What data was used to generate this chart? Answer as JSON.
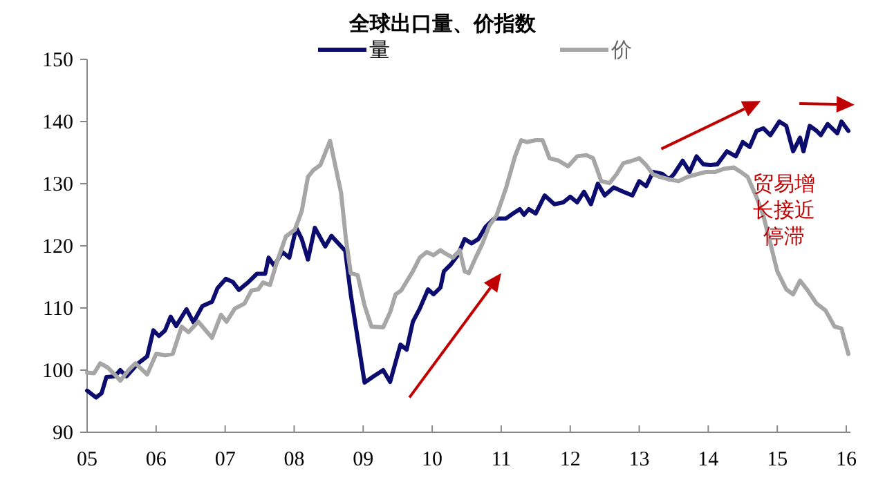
{
  "chart_data": {
    "type": "line",
    "title": "全球出口量、价指数",
    "xlim": [
      2005,
      2016.06
    ],
    "xticks": [
      {
        "value": 2005,
        "label": "05"
      },
      {
        "value": 2006,
        "label": "06"
      },
      {
        "value": 2007,
        "label": "07"
      },
      {
        "value": 2008,
        "label": "08"
      },
      {
        "value": 2009,
        "label": "09"
      },
      {
        "value": 2010,
        "label": "10"
      },
      {
        "value": 2011,
        "label": "11"
      },
      {
        "value": 2012,
        "label": "12"
      },
      {
        "value": 2013,
        "label": "13"
      },
      {
        "value": 2014,
        "label": "14"
      },
      {
        "value": 2015,
        "label": "15"
      },
      {
        "value": 2016,
        "label": "16"
      }
    ],
    "ylim": [
      90,
      150
    ],
    "yticks": [
      90,
      100,
      110,
      120,
      130,
      140,
      150
    ],
    "grid": false,
    "legend": "top",
    "marker": "none",
    "line_style": "solid",
    "series": [
      {
        "name": "量",
        "color": "#0c0c6e",
        "x": [
          2005.0,
          2005.13,
          2005.21,
          2005.28,
          2005.4,
          2005.48,
          2005.57,
          2005.74,
          2005.87,
          2005.96,
          2006.04,
          2006.13,
          2006.21,
          2006.29,
          2006.44,
          2006.54,
          2006.67,
          2006.81,
          2006.89,
          2007.01,
          2007.11,
          2007.2,
          2007.34,
          2007.46,
          2007.58,
          2007.63,
          2007.71,
          2007.83,
          2007.93,
          2008.03,
          2008.11,
          2008.2,
          2008.3,
          2008.45,
          2008.54,
          2008.74,
          2008.82,
          2009.02,
          2009.15,
          2009.29,
          2009.39,
          2009.54,
          2009.63,
          2009.72,
          2009.82,
          2009.94,
          2010.02,
          2010.12,
          2010.17,
          2010.27,
          2010.37,
          2010.47,
          2010.57,
          2010.67,
          2010.77,
          2010.9,
          2011.07,
          2011.17,
          2011.27,
          2011.33,
          2011.4,
          2011.5,
          2011.63,
          2011.77,
          2011.9,
          2012.0,
          2012.1,
          2012.2,
          2012.3,
          2012.4,
          2012.5,
          2012.63,
          2012.77,
          2012.9,
          2013.0,
          2013.1,
          2013.2,
          2013.33,
          2013.43,
          2013.5,
          2013.63,
          2013.73,
          2013.83,
          2013.93,
          2014.03,
          2014.13,
          2014.27,
          2014.4,
          2014.5,
          2014.6,
          2014.7,
          2014.8,
          2014.9,
          2015.03,
          2015.13,
          2015.23,
          2015.33,
          2015.38,
          2015.47,
          2015.57,
          2015.63,
          2015.73,
          2015.87,
          2015.93,
          2016.03
        ],
        "values": [
          96.7,
          95.6,
          96.3,
          98.9,
          99.0,
          100.0,
          99.0,
          101.1,
          102.2,
          106.4,
          105.5,
          106.4,
          108.6,
          107.1,
          109.8,
          107.7,
          110.3,
          111.0,
          113.2,
          114.7,
          114.2,
          112.9,
          114.2,
          115.5,
          115.5,
          118.1,
          116.8,
          119.0,
          118.1,
          122.9,
          121.1,
          117.8,
          122.9,
          119.9,
          121.6,
          119.2,
          112.2,
          98.0,
          99.0,
          100.0,
          98.1,
          104.1,
          103.3,
          107.8,
          109.9,
          113.0,
          112.2,
          113.3,
          115.9,
          117.0,
          118.5,
          121.1,
          120.4,
          121.1,
          123.0,
          124.4,
          124.4,
          125.2,
          125.9,
          125.0,
          125.9,
          125.2,
          128.1,
          126.7,
          127.0,
          127.9,
          127.0,
          128.7,
          126.7,
          130.0,
          128.1,
          129.4,
          128.7,
          128.1,
          130.4,
          129.6,
          131.9,
          131.6,
          130.7,
          131.5,
          133.7,
          131.9,
          134.4,
          133.1,
          133.0,
          133.1,
          135.2,
          134.4,
          136.7,
          135.9,
          138.5,
          138.9,
          137.8,
          140.0,
          139.3,
          135.2,
          137.4,
          135.2,
          139.3,
          138.5,
          137.8,
          139.6,
          138.1,
          140.0,
          138.5
        ]
      },
      {
        "name": "价",
        "color": "#a6a6a6",
        "x": [
          2005.0,
          2005.1,
          2005.19,
          2005.3,
          2005.4,
          2005.48,
          2005.6,
          2005.7,
          2005.87,
          2006.0,
          2006.14,
          2006.24,
          2006.37,
          2006.47,
          2006.61,
          2006.81,
          2006.94,
          2007.02,
          2007.14,
          2007.28,
          2007.38,
          2007.48,
          2007.55,
          2007.65,
          2007.75,
          2007.88,
          2008.01,
          2008.11,
          2008.2,
          2008.28,
          2008.38,
          2008.52,
          2008.68,
          2008.75,
          2008.82,
          2008.92,
          2009.02,
          2009.12,
          2009.29,
          2009.39,
          2009.47,
          2009.55,
          2009.72,
          2009.82,
          2009.92,
          2010.02,
          2010.12,
          2010.17,
          2010.3,
          2010.4,
          2010.47,
          2010.53,
          2010.63,
          2010.73,
          2010.83,
          2010.93,
          2011.07,
          2011.2,
          2011.29,
          2011.37,
          2011.5,
          2011.6,
          2011.7,
          2011.83,
          2011.97,
          2012.1,
          2012.23,
          2012.33,
          2012.45,
          2012.57,
          2012.67,
          2012.77,
          2012.9,
          2013.0,
          2013.1,
          2013.2,
          2013.3,
          2013.43,
          2013.57,
          2013.7,
          2013.83,
          2013.97,
          2014.1,
          2014.23,
          2014.37,
          2014.47,
          2014.57,
          2014.7,
          2014.8,
          2014.9,
          2015.0,
          2015.13,
          2015.23,
          2015.33,
          2015.43,
          2015.57,
          2015.7,
          2015.83,
          2015.93,
          2016.03
        ],
        "values": [
          99.6,
          99.5,
          101.1,
          100.4,
          99.3,
          98.3,
          100.0,
          101.1,
          99.3,
          102.6,
          102.4,
          102.6,
          107.0,
          106.1,
          107.8,
          105.2,
          108.9,
          107.8,
          109.9,
          110.7,
          112.8,
          113.0,
          114.1,
          113.7,
          117.4,
          121.5,
          122.6,
          125.6,
          131.1,
          132.2,
          133.0,
          136.9,
          128.5,
          121.1,
          115.6,
          115.3,
          110.4,
          107.0,
          106.9,
          109.3,
          112.2,
          112.8,
          115.9,
          118.1,
          119.0,
          118.5,
          119.3,
          118.9,
          118.1,
          119.3,
          115.9,
          115.6,
          118.1,
          120.4,
          123.3,
          124.8,
          129.3,
          134.4,
          137.0,
          136.7,
          137.0,
          137.0,
          134.1,
          133.7,
          132.8,
          134.4,
          134.6,
          134.1,
          130.4,
          130.1,
          131.5,
          133.3,
          133.7,
          134.1,
          133.0,
          131.5,
          131.1,
          130.7,
          130.4,
          131.1,
          131.5,
          131.9,
          131.9,
          132.4,
          132.6,
          131.9,
          131.1,
          127.8,
          124.8,
          120.4,
          115.9,
          113.0,
          112.2,
          114.4,
          113.0,
          110.7,
          109.6,
          107.0,
          106.7,
          102.6
        ]
      }
    ],
    "annotations": [
      "贸易增长接近停滞"
    ]
  }
}
